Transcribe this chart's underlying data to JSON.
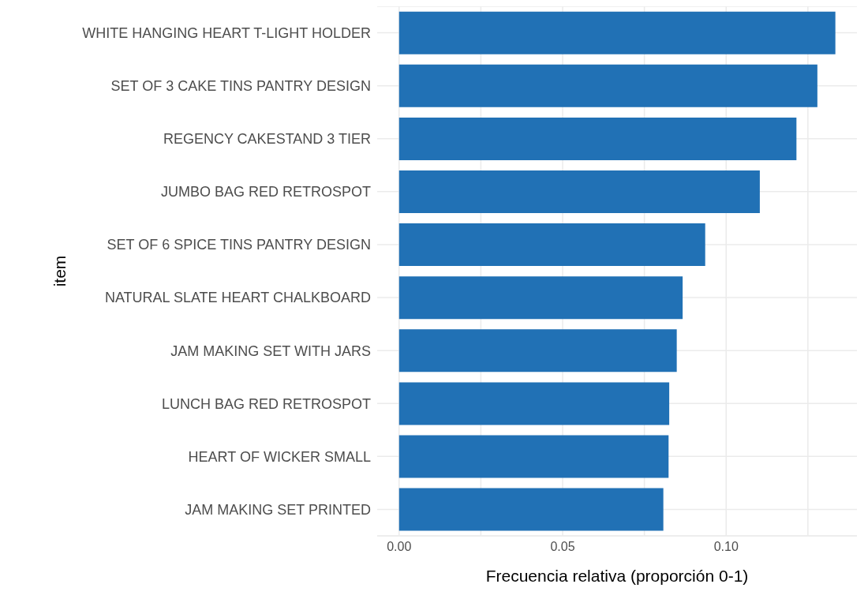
{
  "chart_data": {
    "type": "bar",
    "orientation": "horizontal",
    "xlabel": "Frecuencia relativa (proporción 0-1)",
    "ylabel": "item",
    "categories": [
      "WHITE HANGING HEART T-LIGHT HOLDER",
      "SET OF 3 CAKE TINS PANTRY DESIGN ",
      "REGENCY CAKESTAND 3 TIER",
      "JUMBO BAG RED RETROSPOT",
      "SET OF 6 SPICE TINS PANTRY DESIGN",
      "NATURAL SLATE HEART CHALKBOARD ",
      "JAM MAKING SET WITH JARS",
      "LUNCH BAG RED RETROSPOT",
      "HEART OF WICKER SMALL",
      "JAM MAKING SET PRINTED"
    ],
    "values": [
      0.1334,
      0.1279,
      0.1215,
      0.1103,
      0.0936,
      0.0867,
      0.0849,
      0.0826,
      0.0824,
      0.0808
    ],
    "color": "#2171b5",
    "xlim": [
      -0.0067,
      0.14
    ],
    "xticks": [
      {
        "value": 0,
        "label": "0.00"
      },
      {
        "value": 0.025,
        "label": null
      },
      {
        "value": 0.05,
        "label": "0.05"
      },
      {
        "value": 0.075,
        "label": null
      },
      {
        "value": 0.1,
        "label": "0.10"
      },
      {
        "value": 0.125,
        "label": null
      }
    ],
    "grid": true
  }
}
